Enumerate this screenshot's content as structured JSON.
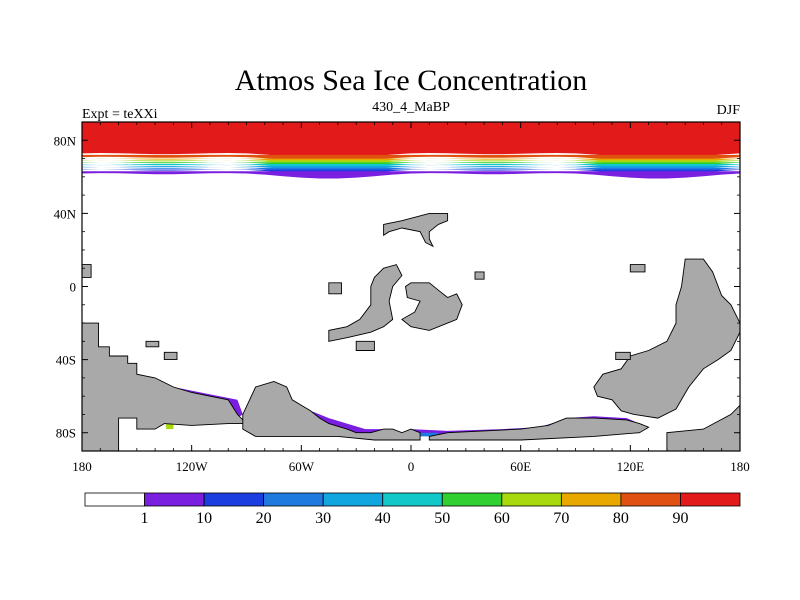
{
  "chart_data": {
    "type": "heatmap",
    "title": "Atmos Sea Ice Concentration",
    "left_label": "Expt = teXXi",
    "center_label": "430_4_MaBP",
    "right_label": "DJF",
    "x_ticks": [
      "180",
      "120W",
      "60W",
      "0",
      "60E",
      "120E",
      "180"
    ],
    "x_tick_values": [
      -180,
      -120,
      -60,
      0,
      60,
      120,
      180
    ],
    "y_ticks": [
      "80N",
      "40N",
      "0",
      "40S",
      "80S"
    ],
    "y_tick_values": [
      80,
      40,
      0,
      -40,
      -80
    ],
    "xlim": [
      -180,
      180
    ],
    "ylim": [
      -90,
      90
    ],
    "colorbar": {
      "levels": [
        "1",
        "10",
        "20",
        "30",
        "40",
        "50",
        "60",
        "70",
        "80",
        "90"
      ],
      "colors": [
        "#ffffff",
        "#7a1ee0",
        "#1a3ee0",
        "#1f7ae0",
        "#11a6e0",
        "#13c8c8",
        "#2fd02f",
        "#a8d80e",
        "#e8a800",
        "#e05010",
        "#e31a1a"
      ]
    },
    "land_color": "#a9a9a9",
    "arctic_bands": [
      {
        "lat_top": 90,
        "lat_bottom": 72,
        "color": "#e31a1a"
      },
      {
        "lat_top": 72,
        "lat_bottom": 70,
        "color": "#e05010"
      },
      {
        "lat_top": 70,
        "lat_bottom": 69,
        "color": "#e8a800"
      },
      {
        "lat_top": 69,
        "lat_bottom": 68,
        "color": "#a8d80e"
      },
      {
        "lat_top": 68,
        "lat_bottom": 67,
        "color": "#2fd02f"
      },
      {
        "lat_top": 67,
        "lat_bottom": 66,
        "color": "#13c8c8"
      },
      {
        "lat_top": 66,
        "lat_bottom": 65,
        "color": "#11a6e0"
      },
      {
        "lat_top": 65,
        "lat_bottom": 64,
        "color": "#1f7ae0"
      },
      {
        "lat_top": 64,
        "lat_bottom": 63,
        "color": "#1a3ee0"
      },
      {
        "lat_top": 63,
        "lat_bottom": 61,
        "color": "#7a1ee0"
      }
    ],
    "land_regions": [
      {
        "name": "west-continent",
        "points": [
          [
            -180,
            -43
          ],
          [
            -180,
            -20
          ],
          [
            -171,
            -20
          ],
          [
            -171,
            -33
          ],
          [
            -165,
            -33
          ],
          [
            -165,
            -38
          ],
          [
            -155,
            -38
          ],
          [
            -155,
            -42
          ],
          [
            -150,
            -42
          ],
          [
            -150,
            -48
          ],
          [
            -140,
            -50
          ],
          [
            -130,
            -55
          ],
          [
            -120,
            -58
          ],
          [
            -110,
            -60
          ],
          [
            -100,
            -62
          ],
          [
            -95,
            -70
          ],
          [
            -90,
            -75
          ],
          [
            -100,
            -75
          ],
          [
            -120,
            -76
          ],
          [
            -135,
            -75
          ],
          [
            -140,
            -78
          ],
          [
            -150,
            -78
          ],
          [
            -150,
            -72
          ],
          [
            -160,
            -72
          ],
          [
            -160,
            -90
          ],
          [
            -180,
            -90
          ]
        ]
      },
      {
        "name": "central-antarctic-peninsula",
        "points": [
          [
            -92,
            -70
          ],
          [
            -85,
            -55
          ],
          [
            -75,
            -52
          ],
          [
            -68,
            -55
          ],
          [
            -65,
            -62
          ],
          [
            -60,
            -65
          ],
          [
            -55,
            -68
          ],
          [
            -50,
            -72
          ],
          [
            -45,
            -75
          ],
          [
            -35,
            -78
          ],
          [
            -30,
            -80
          ],
          [
            -22,
            -80
          ],
          [
            -15,
            -78
          ],
          [
            -10,
            -78
          ],
          [
            -5,
            -80
          ],
          [
            0,
            -78
          ],
          [
            5,
            -80
          ],
          [
            5,
            -84
          ],
          [
            -20,
            -84
          ],
          [
            -40,
            -82
          ],
          [
            -60,
            -82
          ],
          [
            -85,
            -82
          ],
          [
            -92,
            -78
          ]
        ]
      },
      {
        "name": "east-antarctic",
        "points": [
          [
            10,
            -82
          ],
          [
            20,
            -80
          ],
          [
            40,
            -79
          ],
          [
            60,
            -78
          ],
          [
            75,
            -76
          ],
          [
            85,
            -72
          ],
          [
            100,
            -72
          ],
          [
            118,
            -73
          ],
          [
            125,
            -75
          ],
          [
            130,
            -77
          ],
          [
            125,
            -80
          ],
          [
            100,
            -82
          ],
          [
            60,
            -84
          ],
          [
            30,
            -84
          ],
          [
            10,
            -84
          ]
        ]
      },
      {
        "name": "east-continent",
        "points": [
          [
            100,
            -55
          ],
          [
            102,
            -60
          ],
          [
            110,
            -62
          ],
          [
            115,
            -68
          ],
          [
            122,
            -70
          ],
          [
            135,
            -72
          ],
          [
            145,
            -67
          ],
          [
            152,
            -55
          ],
          [
            160,
            -45
          ],
          [
            168,
            -40
          ],
          [
            175,
            -35
          ],
          [
            180,
            -25
          ],
          [
            180,
            -90
          ],
          [
            140,
            -90
          ],
          [
            140,
            -80
          ],
          [
            160,
            -78
          ],
          [
            175,
            -70
          ],
          [
            180,
            -65
          ],
          [
            180,
            -20
          ],
          [
            175,
            -10
          ],
          [
            170,
            -5
          ],
          [
            165,
            8
          ],
          [
            160,
            15
          ],
          [
            150,
            15
          ],
          [
            148,
            0
          ],
          [
            145,
            -10
          ],
          [
            145,
            -20
          ],
          [
            140,
            -30
          ],
          [
            130,
            -35
          ],
          [
            120,
            -38
          ],
          [
            115,
            -45
          ],
          [
            105,
            -48
          ]
        ]
      },
      {
        "name": "equatorial-island-a",
        "points": [
          [
            -15,
            10
          ],
          [
            -8,
            12
          ],
          [
            -5,
            6
          ],
          [
            -10,
            0
          ],
          [
            -12,
            -8
          ],
          [
            -10,
            -18
          ],
          [
            -15,
            -22
          ],
          [
            -22,
            -25
          ],
          [
            -35,
            -28
          ],
          [
            -45,
            -30
          ],
          [
            -45,
            -24
          ],
          [
            -35,
            -22
          ],
          [
            -28,
            -18
          ],
          [
            -22,
            -10
          ],
          [
            -22,
            0
          ],
          [
            -20,
            5
          ]
        ]
      },
      {
        "name": "equatorial-island-b",
        "points": [
          [
            0,
            2
          ],
          [
            10,
            2
          ],
          [
            15,
            -2
          ],
          [
            20,
            -6
          ],
          [
            25,
            -4
          ],
          [
            28,
            -10
          ],
          [
            25,
            -18
          ],
          [
            20,
            -20
          ],
          [
            10,
            -24
          ],
          [
            0,
            -22
          ],
          [
            -5,
            -18
          ],
          [
            2,
            -14
          ],
          [
            5,
            -8
          ],
          [
            -2,
            -6
          ],
          [
            -3,
            0
          ]
        ]
      },
      {
        "name": "northern-block",
        "points": [
          [
            -15,
            34
          ],
          [
            -5,
            36
          ],
          [
            10,
            40
          ],
          [
            20,
            40
          ],
          [
            20,
            36
          ],
          [
            15,
            34
          ],
          [
            10,
            30
          ],
          [
            10,
            26
          ],
          [
            12,
            22
          ],
          [
            8,
            24
          ],
          [
            5,
            30
          ],
          [
            -5,
            32
          ],
          [
            -12,
            30
          ],
          [
            -15,
            28
          ]
        ]
      },
      {
        "name": "nw-islet",
        "points": [
          [
            -145,
            -30
          ],
          [
            -138,
            -30
          ],
          [
            -138,
            -33
          ],
          [
            -145,
            -33
          ]
        ]
      },
      {
        "name": "small-islet-a",
        "points": [
          [
            -135,
            -36
          ],
          [
            -128,
            -36
          ],
          [
            -128,
            -40
          ],
          [
            -135,
            -40
          ]
        ]
      },
      {
        "name": "small-islet-b",
        "points": [
          [
            -180,
            12
          ],
          [
            -175,
            12
          ],
          [
            -175,
            5
          ],
          [
            -180,
            5
          ]
        ]
      },
      {
        "name": "small-islet-c",
        "points": [
          [
            -45,
            2
          ],
          [
            -38,
            2
          ],
          [
            -38,
            -4
          ],
          [
            -45,
            -4
          ]
        ]
      },
      {
        "name": "small-islet-d",
        "points": [
          [
            35,
            8
          ],
          [
            40,
            8
          ],
          [
            40,
            4
          ],
          [
            35,
            4
          ]
        ]
      },
      {
        "name": "small-islet-e",
        "points": [
          [
            -30,
            -30
          ],
          [
            -20,
            -30
          ],
          [
            -20,
            -35
          ],
          [
            -30,
            -35
          ]
        ]
      },
      {
        "name": "small-islet-f",
        "points": [
          [
            120,
            12
          ],
          [
            128,
            12
          ],
          [
            128,
            8
          ],
          [
            120,
            8
          ]
        ]
      },
      {
        "name": "small-islet-g",
        "points": [
          [
            112,
            -36
          ],
          [
            120,
            -36
          ],
          [
            120,
            -40
          ],
          [
            112,
            -40
          ]
        ]
      }
    ],
    "southern_ice_regions": [
      {
        "color": "#7a1ee0",
        "points": [
          [
            -130,
            -55
          ],
          [
            -115,
            -58
          ],
          [
            -95,
            -62
          ],
          [
            -92,
            -70
          ],
          [
            -100,
            -75
          ],
          [
            -120,
            -76
          ],
          [
            -135,
            -75
          ],
          [
            -135,
            -65
          ]
        ]
      },
      {
        "color": "#1a3ee0",
        "points": [
          [
            -132,
            -60
          ],
          [
            -120,
            -62
          ],
          [
            -105,
            -66
          ],
          [
            -100,
            -72
          ],
          [
            -120,
            -75
          ],
          [
            -133,
            -74
          ]
        ]
      },
      {
        "color": "#1f7ae0",
        "points": [
          [
            -132,
            -65
          ],
          [
            -122,
            -67
          ],
          [
            -118,
            -72
          ],
          [
            -130,
            -74
          ]
        ]
      },
      {
        "color": "#11a6e0",
        "points": [
          [
            -132,
            -68
          ],
          [
            -126,
            -70
          ],
          [
            -128,
            -74
          ],
          [
            -133,
            -74
          ]
        ]
      },
      {
        "color": "#a8d80e",
        "points": [
          [
            -134,
            -72
          ],
          [
            -130,
            -72
          ],
          [
            -130,
            -78
          ],
          [
            -134,
            -78
          ]
        ]
      },
      {
        "color": "#7a1ee0",
        "points": [
          [
            -65,
            -62
          ],
          [
            -55,
            -68
          ],
          [
            -45,
            -72
          ],
          [
            -35,
            -75
          ],
          [
            -25,
            -78
          ],
          [
            -10,
            -78
          ],
          [
            -10,
            -80
          ],
          [
            -30,
            -80
          ],
          [
            -50,
            -76
          ],
          [
            -62,
            -68
          ]
        ]
      },
      {
        "color": "#1f7ae0",
        "points": [
          [
            -55,
            -78
          ],
          [
            -35,
            -78
          ],
          [
            -30,
            -82
          ],
          [
            -60,
            -82
          ]
        ]
      },
      {
        "color": "#11a6e0",
        "points": [
          [
            -70,
            -80
          ],
          [
            -60,
            -79
          ],
          [
            -60,
            -82
          ],
          [
            -70,
            -82
          ]
        ]
      },
      {
        "color": "#e8a800",
        "points": [
          [
            -55,
            -80
          ],
          [
            -52,
            -79
          ],
          [
            -52,
            -82
          ],
          [
            -55,
            -82
          ]
        ]
      },
      {
        "color": "#2fd02f",
        "points": [
          [
            -58,
            -80
          ],
          [
            -55,
            -80
          ],
          [
            -55,
            -82
          ],
          [
            -58,
            -82
          ]
        ]
      },
      {
        "color": "#7a1ee0",
        "points": [
          [
            0,
            -78
          ],
          [
            20,
            -79
          ],
          [
            50,
            -78
          ],
          [
            70,
            -77
          ],
          [
            80,
            -74
          ],
          [
            85,
            -72
          ],
          [
            100,
            -71
          ],
          [
            118,
            -72
          ],
          [
            125,
            -75
          ],
          [
            115,
            -77
          ],
          [
            80,
            -78
          ],
          [
            60,
            -80
          ],
          [
            30,
            -81
          ],
          [
            10,
            -82
          ],
          [
            3,
            -80
          ]
        ]
      },
      {
        "color": "#1a3ee0",
        "points": [
          [
            85,
            -74
          ],
          [
            110,
            -74
          ],
          [
            125,
            -76
          ],
          [
            110,
            -78
          ],
          [
            90,
            -78
          ]
        ]
      },
      {
        "color": "#11a6e0",
        "points": [
          [
            90,
            -76
          ],
          [
            118,
            -76
          ],
          [
            130,
            -78
          ],
          [
            110,
            -79
          ]
        ]
      },
      {
        "color": "#1f7ae0",
        "points": [
          [
            5,
            -80
          ],
          [
            15,
            -80
          ],
          [
            15,
            -82
          ],
          [
            5,
            -82
          ]
        ]
      }
    ]
  }
}
